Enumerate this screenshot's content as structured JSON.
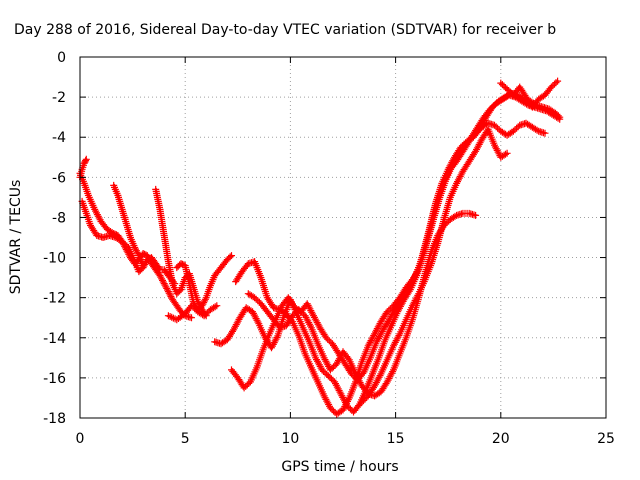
{
  "chart_data": {
    "type": "scatter",
    "title": "Day 288 of 2016, Sidereal Day-to-day VTEC variation (SDTVAR) for receiver b",
    "xlabel": "GPS time / hours",
    "ylabel": "SDTVAR / TECUs",
    "xlim": [
      0,
      25
    ],
    "ylim": [
      -18,
      0
    ],
    "x_ticks": [
      0,
      5,
      10,
      15,
      20,
      25
    ],
    "y_ticks": [
      0,
      -2,
      -4,
      -6,
      -8,
      -10,
      -12,
      -14,
      -16,
      -18
    ],
    "x_tick_labels": [
      "0",
      "5",
      "10",
      "15",
      "20",
      "25"
    ],
    "y_tick_labels": [
      "0",
      "-2",
      "-4",
      "-6",
      "-8",
      "-10",
      "-12",
      "-14",
      "-16",
      "-18"
    ],
    "grid": true,
    "marker": "plus",
    "color": "#ff0000",
    "series": [
      {
        "x": [
          0.0,
          0.2,
          0.4,
          0.7,
          1.0,
          1.3,
          1.6,
          1.8,
          2.0,
          2.2,
          2.4,
          2.6,
          2.8,
          3.0,
          3.2,
          3.4,
          3.6,
          3.8,
          4.0,
          4.2,
          4.4,
          4.6,
          4.8,
          5.0,
          5.3
        ],
        "y": [
          -5.8,
          -6.3,
          -6.9,
          -7.6,
          -8.2,
          -8.6,
          -8.8,
          -8.9,
          -9.2,
          -9.6,
          -10.0,
          -10.3,
          -10.1,
          -9.8,
          -9.9,
          -10.3,
          -10.6,
          -10.9,
          -11.3,
          -11.7,
          -12.1,
          -12.4,
          -12.7,
          -12.9,
          -13.0
        ]
      },
      {
        "x": [
          0.1,
          0.3,
          0.5,
          0.8,
          1.1,
          1.4,
          1.7,
          2.0,
          2.3,
          2.6,
          2.8,
          3.0,
          3.2,
          3.4,
          3.6,
          3.8,
          4.0,
          4.2,
          4.5
        ],
        "y": [
          -7.2,
          -7.8,
          -8.4,
          -8.9,
          -9.0,
          -8.9,
          -9.0,
          -9.2,
          -9.5,
          -10.2,
          -10.7,
          -10.5,
          -10.1,
          -10.0,
          -10.3,
          -10.6,
          -10.6,
          -10.9,
          -11.3
        ]
      },
      {
        "x": [
          0.0,
          0.1,
          0.2,
          0.3
        ],
        "y": [
          -6.0,
          -5.6,
          -5.3,
          -5.1
        ]
      },
      {
        "x": [
          1.6,
          1.8,
          2.0,
          2.2,
          2.4,
          2.6,
          2.8,
          3.0
        ],
        "y": [
          -6.4,
          -6.9,
          -7.6,
          -8.3,
          -9.0,
          -9.5,
          -9.9,
          -10.4
        ]
      },
      {
        "x": [
          3.6,
          3.8,
          4.0,
          4.2,
          4.4,
          4.6,
          4.8,
          5.0,
          5.2,
          5.4,
          5.6,
          5.8,
          6.0
        ],
        "y": [
          -6.6,
          -7.6,
          -8.9,
          -10.2,
          -11.3,
          -11.8,
          -11.6,
          -11.0,
          -10.8,
          -11.5,
          -12.2,
          -12.6,
          -12.9
        ]
      },
      {
        "x": [
          4.6,
          4.8,
          5.0,
          5.2,
          5.4,
          5.6,
          5.8,
          6.0,
          6.2,
          6.4,
          6.7,
          7.0,
          7.2
        ],
        "y": [
          -10.5,
          -10.3,
          -10.4,
          -11.3,
          -12.3,
          -12.6,
          -12.4,
          -12.0,
          -11.4,
          -10.9,
          -10.5,
          -10.1,
          -9.9
        ]
      },
      {
        "x": [
          4.2,
          4.6,
          5.0,
          5.3,
          5.6,
          5.9,
          6.2,
          6.5
        ],
        "y": [
          -12.9,
          -13.1,
          -12.8,
          -12.4,
          -12.7,
          -12.9,
          -12.6,
          -12.4
        ]
      },
      {
        "x": [
          6.4,
          6.7,
          7.0,
          7.3,
          7.6,
          7.9,
          8.2,
          8.5,
          8.8,
          9.1,
          9.4,
          9.7,
          10.0,
          10.3,
          10.6,
          10.9,
          11.2,
          11.5,
          11.8,
          12.1,
          12.4,
          12.7,
          13.0,
          13.3,
          13.6,
          13.9,
          14.2,
          14.5,
          14.8,
          15.1,
          15.4,
          15.7,
          16.0,
          16.3,
          16.6,
          16.9,
          17.2,
          17.5,
          17.8,
          18.1,
          18.4,
          18.7,
          19.0,
          19.3,
          19.6,
          19.9,
          20.2,
          20.5,
          20.8,
          21.1,
          21.4,
          21.7,
          22.0,
          22.3,
          22.6,
          22.8
        ],
        "y": [
          -14.2,
          -14.3,
          -14.1,
          -13.6,
          -13.0,
          -12.5,
          -12.7,
          -13.3,
          -14.0,
          -14.5,
          -13.9,
          -12.9,
          -12.1,
          -12.8,
          -13.5,
          -14.2,
          -15.0,
          -15.6,
          -15.9,
          -16.2,
          -16.8,
          -17.4,
          -17.7,
          -17.3,
          -16.6,
          -15.8,
          -15.0,
          -14.1,
          -13.4,
          -12.7,
          -12.1,
          -11.6,
          -10.9,
          -9.8,
          -8.6,
          -7.3,
          -6.3,
          -5.6,
          -5.0,
          -4.5,
          -4.2,
          -4.0,
          -3.6,
          -3.0,
          -2.5,
          -2.2,
          -2.0,
          -1.8,
          -1.9,
          -2.1,
          -2.2,
          -2.4,
          -2.5,
          -2.6,
          -2.8,
          -3.0
        ]
      },
      {
        "x": [
          7.2,
          7.5,
          7.8,
          8.1,
          8.4,
          8.7,
          9.0,
          9.3,
          9.6,
          9.9,
          10.2,
          10.5,
          10.8,
          11.1,
          11.4,
          11.7,
          12.0,
          12.3,
          12.6,
          12.9,
          13.2,
          13.5,
          13.8,
          14.1,
          14.4,
          14.7,
          15.0,
          15.3,
          15.6,
          15.9,
          16.2,
          16.5,
          16.8,
          17.1,
          17.4,
          17.7,
          18.0,
          18.3,
          18.6,
          18.9,
          19.2,
          19.5,
          19.8,
          20.1,
          20.4,
          20.7,
          21.0,
          21.3,
          21.6,
          21.9,
          22.2,
          22.5,
          22.8
        ],
        "y": [
          -15.6,
          -16.0,
          -16.5,
          -16.2,
          -15.5,
          -14.6,
          -13.8,
          -13.1,
          -12.4,
          -12.0,
          -12.5,
          -12.7,
          -12.3,
          -12.9,
          -13.5,
          -14.0,
          -14.3,
          -14.8,
          -15.3,
          -15.8,
          -16.1,
          -15.7,
          -15.0,
          -14.2,
          -13.6,
          -13.1,
          -12.5,
          -12.0,
          -11.6,
          -11.0,
          -10.2,
          -9.2,
          -8.1,
          -7.0,
          -6.1,
          -5.4,
          -4.9,
          -4.4,
          -4.0,
          -3.5,
          -3.0,
          -2.6,
          -2.3,
          -2.1,
          -1.9,
          -2.0,
          -2.2,
          -2.4,
          -2.5,
          -2.6,
          -2.7,
          -2.9,
          -3.1
        ]
      },
      {
        "x": [
          7.4,
          7.7,
          8.0,
          8.3,
          8.6,
          8.9,
          9.2,
          9.5,
          9.8,
          10.1,
          10.4,
          10.7,
          11.0,
          11.3,
          11.6,
          11.9,
          12.2,
          12.5,
          12.8,
          13.1,
          13.4,
          13.7,
          14.0,
          14.3,
          14.6,
          14.9,
          15.2,
          15.5,
          15.8,
          16.1,
          16.4,
          16.7,
          17.0,
          17.3,
          17.6,
          17.9,
          18.2,
          18.5,
          18.8,
          19.1,
          19.4,
          19.7,
          20.0,
          20.3,
          20.6,
          20.9,
          21.2,
          21.5,
          21.8,
          22.1
        ],
        "y": [
          -11.2,
          -10.7,
          -10.3,
          -10.2,
          -11.0,
          -12.0,
          -12.5,
          -12.6,
          -12.8,
          -13.2,
          -13.9,
          -14.8,
          -15.5,
          -16.2,
          -16.9,
          -17.5,
          -17.8,
          -17.6,
          -17.0,
          -16.2,
          -15.2,
          -14.4,
          -13.8,
          -13.2,
          -12.7,
          -12.4,
          -12.0,
          -11.5,
          -11.1,
          -10.6,
          -9.6,
          -8.3,
          -7.1,
          -6.2,
          -5.6,
          -5.2,
          -4.7,
          -4.2,
          -3.8,
          -3.5,
          -3.3,
          -3.4,
          -3.7,
          -3.9,
          -3.7,
          -3.4,
          -3.3,
          -3.5,
          -3.7,
          -3.8
        ]
      },
      {
        "x": [
          8.0,
          8.3,
          8.6,
          8.9,
          9.2,
          9.5,
          9.8,
          10.1,
          10.4,
          10.7,
          11.0,
          11.3,
          11.6,
          11.9,
          12.2,
          12.5,
          12.8,
          13.1,
          13.4,
          13.7,
          14.0,
          14.3,
          14.6,
          14.9,
          15.2,
          15.5,
          15.8,
          16.1,
          16.4,
          16.7,
          17.0,
          17.3,
          17.6,
          17.9,
          18.2,
          18.5,
          18.8
        ],
        "y": [
          -11.8,
          -12.0,
          -12.3,
          -12.7,
          -13.1,
          -13.5,
          -13.4,
          -12.9,
          -12.6,
          -12.9,
          -13.5,
          -14.3,
          -15.0,
          -15.6,
          -15.3,
          -14.7,
          -15.1,
          -15.8,
          -16.4,
          -16.8,
          -16.9,
          -16.7,
          -16.2,
          -15.6,
          -14.8,
          -14.0,
          -13.1,
          -12.0,
          -10.8,
          -9.7,
          -8.9,
          -8.4,
          -8.1,
          -7.9,
          -7.8,
          -7.8,
          -7.9
        ]
      },
      {
        "x": [
          13.4,
          13.7,
          14.0,
          14.3,
          14.6,
          14.9,
          15.2,
          15.5,
          15.8,
          16.1,
          16.4,
          16.7,
          17.0,
          17.3,
          17.6,
          17.9,
          18.2,
          18.5,
          18.8,
          19.1,
          19.4,
          19.7,
          20.0,
          20.3
        ],
        "y": [
          -17.2,
          -16.9,
          -16.4,
          -15.8,
          -15.1,
          -14.4,
          -13.8,
          -13.1,
          -12.4,
          -11.8,
          -11.1,
          -10.3,
          -9.3,
          -8.1,
          -7.0,
          -6.3,
          -5.7,
          -5.2,
          -4.7,
          -4.1,
          -3.6,
          -4.4,
          -5.0,
          -4.8
        ]
      },
      {
        "x": [
          20.0,
          20.3,
          20.6,
          20.9,
          21.2,
          21.5,
          21.8,
          22.1,
          22.4,
          22.7
        ],
        "y": [
          -1.3,
          -1.6,
          -1.9,
          -1.5,
          -2.0,
          -2.5,
          -2.1,
          -1.9,
          -1.5,
          -1.2
        ]
      }
    ]
  }
}
